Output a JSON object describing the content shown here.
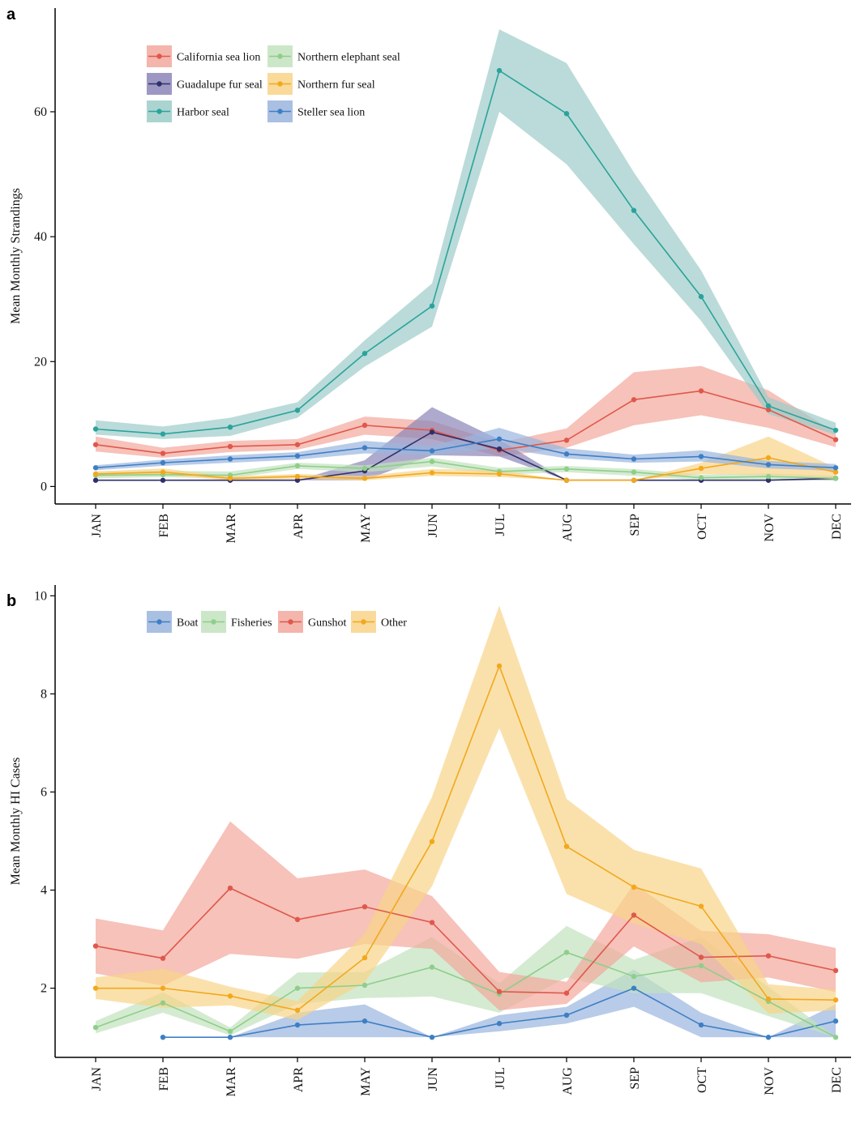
{
  "chart_data": [
    {
      "panel_label": "a",
      "type": "line",
      "xlabel": "",
      "ylabel": "Mean Monthly Strandings",
      "categories": [
        "JAN",
        "FEB",
        "MAR",
        "APR",
        "MAY",
        "JUN",
        "JUL",
        "AUG",
        "SEP",
        "OCT",
        "NOV",
        "DEC"
      ],
      "ylim": [
        -2.8,
        76.6
      ],
      "yticks": [
        0,
        20,
        40,
        60
      ],
      "ytick_labels": [
        "0",
        "20",
        "40",
        "60"
      ],
      "legend_position": "top-left",
      "grid": false,
      "series": [
        {
          "name": "California sea lion",
          "color": "#e0584b",
          "band_color": "#f2a89d",
          "values": [
            6.7,
            5.3,
            6.4,
            6.7,
            9.8,
            9.0,
            5.8,
            7.4,
            13.9,
            15.3,
            12.3,
            7.5
          ],
          "lower": [
            5.6,
            4.6,
            5.5,
            5.9,
            8.3,
            7.6,
            4.8,
            6.2,
            9.8,
            11.4,
            9.4,
            6.3
          ],
          "upper": [
            8.0,
            6.2,
            7.3,
            7.6,
            11.2,
            10.5,
            7.0,
            9.3,
            18.3,
            19.3,
            15.4,
            8.6
          ]
        },
        {
          "name": "Guadalupe fur seal",
          "color": "#2f2f6b",
          "band_color": "#8c86b8",
          "values": [
            1.0,
            1.0,
            1.0,
            1.0,
            2.5,
            8.7,
            6.0,
            1.0,
            1.0,
            1.0,
            1.0,
            1.3
          ],
          "lower": [
            1.0,
            1.0,
            1.0,
            1.0,
            1.0,
            5.0,
            4.8,
            1.0,
            1.0,
            1.0,
            1.0,
            1.0
          ],
          "upper": [
            1.0,
            1.0,
            1.0,
            1.0,
            4.2,
            12.7,
            7.5,
            1.0,
            1.0,
            1.0,
            1.0,
            1.6
          ]
        },
        {
          "name": "Harbor seal",
          "color": "#2aa39b",
          "band_color": "#9cccc9",
          "values": [
            9.2,
            8.4,
            9.5,
            12.2,
            21.3,
            28.9,
            66.6,
            59.7,
            44.2,
            30.4,
            12.9,
            9.0
          ],
          "lower": [
            8.3,
            7.6,
            8.1,
            11.0,
            19.2,
            25.6,
            60.0,
            51.6,
            38.8,
            26.5,
            11.6,
            8.3
          ],
          "upper": [
            10.6,
            9.6,
            11.0,
            13.5,
            23.4,
            32.5,
            73.2,
            67.8,
            50.3,
            34.6,
            14.3,
            10.2
          ]
        },
        {
          "name": "Northern elephant seal",
          "color": "#8fce8a",
          "band_color": "#c2e3be",
          "values": [
            1.8,
            1.9,
            1.8,
            3.3,
            2.9,
            4.0,
            2.4,
            2.8,
            2.3,
            1.4,
            1.6,
            1.3
          ],
          "lower": [
            1.3,
            1.5,
            1.3,
            2.8,
            2.3,
            3.2,
            1.9,
            2.3,
            1.7,
            1.0,
            1.1,
            1.0
          ],
          "upper": [
            2.4,
            2.5,
            2.4,
            3.8,
            3.4,
            4.6,
            3.0,
            3.3,
            2.8,
            1.9,
            2.1,
            1.7
          ]
        },
        {
          "name": "Northern fur seal",
          "color": "#f2a81d",
          "band_color": "#f8d489",
          "values": [
            2.0,
            2.3,
            1.3,
            1.6,
            1.3,
            2.2,
            2.0,
            1.0,
            1.0,
            2.9,
            4.6,
            2.3
          ],
          "lower": [
            1.6,
            1.8,
            1.0,
            1.2,
            1.0,
            1.7,
            1.5,
            1.0,
            1.0,
            2.0,
            1.8,
            1.4
          ],
          "upper": [
            2.4,
            2.9,
            1.6,
            2.0,
            1.7,
            2.8,
            2.6,
            1.0,
            1.0,
            3.8,
            8.0,
            3.0
          ]
        },
        {
          "name": "Steller sea lion",
          "color": "#3d7fc4",
          "band_color": "#9ab5de",
          "values": [
            3.0,
            3.8,
            4.4,
            4.9,
            6.2,
            5.7,
            7.6,
            5.2,
            4.4,
            4.8,
            3.5,
            3.0
          ],
          "lower": [
            2.6,
            3.3,
            3.8,
            4.3,
            5.3,
            5.0,
            6.2,
            4.5,
            3.8,
            4.0,
            2.9,
            2.5
          ],
          "upper": [
            3.4,
            4.3,
            5.0,
            5.5,
            7.3,
            6.5,
            9.4,
            6.1,
            5.1,
            5.8,
            4.1,
            3.6
          ]
        }
      ]
    },
    {
      "panel_label": "b",
      "type": "line",
      "xlabel": "",
      "ylabel": "Mean Monthly HI Cases",
      "categories": [
        "JAN",
        "FEB",
        "MAR",
        "APR",
        "MAY",
        "JUN",
        "JUL",
        "AUG",
        "SEP",
        "OCT",
        "NOV",
        "DEC"
      ],
      "ylim": [
        0.59,
        10.22
      ],
      "yticks": [
        2,
        4,
        6,
        8,
        10
      ],
      "ytick_labels": [
        "2",
        "4",
        "6",
        "8",
        "10"
      ],
      "legend_position": "top-left",
      "grid": false,
      "series": [
        {
          "name": "Boat",
          "color": "#3d7fc4",
          "band_color": "#9ab5de",
          "values": [
            null,
            1.0,
            1.0,
            1.25,
            1.33,
            1.0,
            1.28,
            1.45,
            2.0,
            1.25,
            1.0,
            1.33
          ],
          "lower": [
            null,
            1.0,
            1.0,
            1.0,
            1.0,
            1.0,
            1.12,
            1.28,
            1.62,
            1.0,
            1.0,
            1.0
          ],
          "upper": [
            null,
            1.0,
            1.0,
            1.5,
            1.67,
            1.0,
            1.45,
            1.62,
            2.38,
            1.5,
            1.0,
            1.67
          ]
        },
        {
          "name": "Fisheries",
          "color": "#8fce8a",
          "band_color": "#c2e3be",
          "values": [
            1.2,
            1.7,
            1.12,
            2.0,
            2.06,
            2.43,
            1.88,
            2.73,
            2.24,
            2.46,
            1.73,
            1.0
          ],
          "lower": [
            1.08,
            1.5,
            1.04,
            1.68,
            1.8,
            1.83,
            1.5,
            2.22,
            1.9,
            1.9,
            1.43,
            1.0
          ],
          "upper": [
            1.33,
            1.92,
            1.2,
            2.32,
            2.33,
            3.04,
            2.1,
            3.27,
            2.58,
            3.04,
            2.03,
            1.0
          ]
        },
        {
          "name": "Gunshot",
          "color": "#e0584b",
          "band_color": "#f2a89d",
          "values": [
            2.86,
            2.61,
            4.04,
            3.4,
            3.66,
            3.34,
            1.93,
            1.9,
            3.49,
            2.63,
            2.66,
            2.36
          ],
          "lower": [
            2.3,
            2.05,
            2.7,
            2.6,
            2.9,
            2.8,
            1.55,
            1.68,
            2.85,
            2.12,
            2.22,
            1.92
          ],
          "upper": [
            3.42,
            3.18,
            5.4,
            4.24,
            4.42,
            3.88,
            2.33,
            2.13,
            4.13,
            3.17,
            3.1,
            2.82
          ]
        },
        {
          "name": "Other",
          "color": "#f2a81d",
          "band_color": "#f8d489",
          "values": [
            2.0,
            2.0,
            1.84,
            1.55,
            2.62,
            4.99,
            8.57,
            4.89,
            4.06,
            3.67,
            1.78,
            1.76
          ],
          "lower": [
            1.78,
            1.6,
            1.65,
            1.35,
            2.12,
            4.08,
            7.3,
            3.92,
            3.32,
            2.9,
            1.48,
            1.55
          ],
          "upper": [
            2.22,
            2.4,
            2.03,
            1.74,
            3.12,
            5.9,
            9.8,
            5.86,
            4.82,
            4.44,
            2.08,
            1.97
          ]
        }
      ]
    }
  ]
}
